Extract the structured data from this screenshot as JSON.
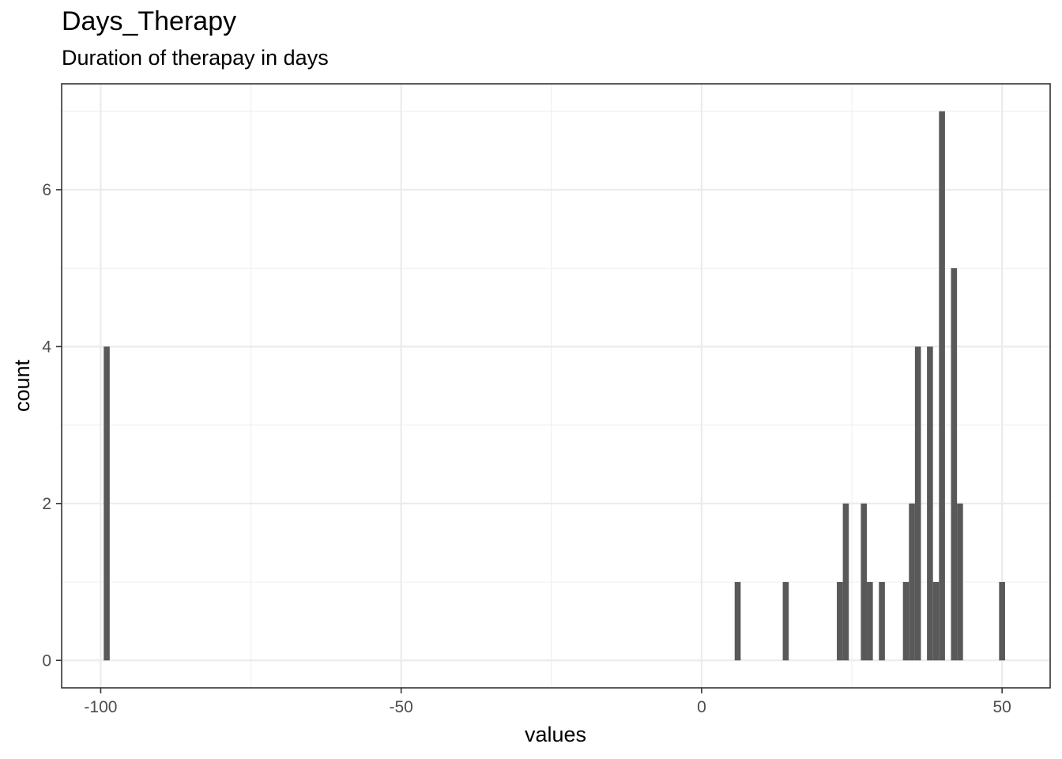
{
  "chart_data": {
    "type": "bar",
    "title": "Days_Therapy",
    "subtitle": "Duration of therapay in days",
    "xlabel": "values",
    "ylabel": "count",
    "xlim": [
      -106.5,
      58
    ],
    "ylim": [
      -0.35,
      7.35
    ],
    "x_ticks": [
      -100,
      -50,
      0,
      50
    ],
    "y_ticks": [
      0,
      2,
      4,
      6
    ],
    "x_tick_labels": [
      "-100",
      "-50",
      "0",
      "50"
    ],
    "y_tick_labels": [
      "0",
      "2",
      "4",
      "6"
    ],
    "grid": true,
    "bar_color": "#595959",
    "bin_width": 1,
    "bins": [
      {
        "x": -99,
        "count": 4
      },
      {
        "x": 6,
        "count": 1
      },
      {
        "x": 14,
        "count": 1
      },
      {
        "x": 23,
        "count": 1
      },
      {
        "x": 24,
        "count": 2
      },
      {
        "x": 27,
        "count": 2
      },
      {
        "x": 28,
        "count": 1
      },
      {
        "x": 30,
        "count": 1
      },
      {
        "x": 34,
        "count": 1
      },
      {
        "x": 35,
        "count": 2
      },
      {
        "x": 36,
        "count": 4
      },
      {
        "x": 38,
        "count": 4
      },
      {
        "x": 39,
        "count": 1
      },
      {
        "x": 40,
        "count": 7
      },
      {
        "x": 42,
        "count": 5
      },
      {
        "x": 43,
        "count": 2
      },
      {
        "x": 50,
        "count": 1
      }
    ]
  }
}
